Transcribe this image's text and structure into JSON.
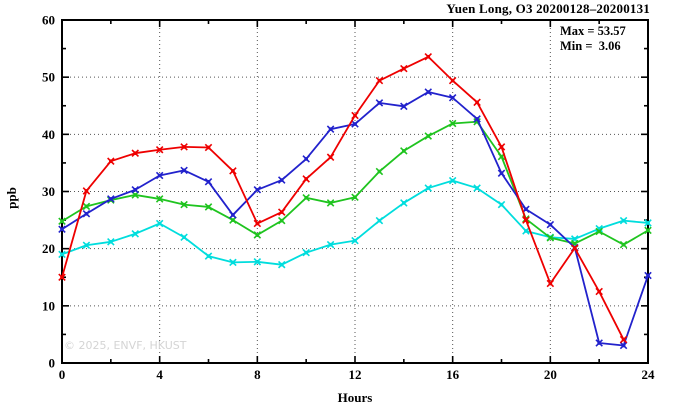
{
  "title": "Yuen Long, O3 20200128–20200131",
  "annotation": {
    "max_line": "Max = 53.57",
    "min_line": "Min =  3.06"
  },
  "watermark": "© 2025, ENVF, HKUST",
  "chart_data": {
    "type": "line",
    "title": "Yuen Long, O3 20200128–20200131",
    "xlabel": "Hours",
    "ylabel": "ppb",
    "xlim": [
      0,
      24
    ],
    "ylim": [
      0,
      60
    ],
    "x_major_ticks": [
      0,
      4,
      8,
      12,
      16,
      20,
      24
    ],
    "x_minor_ticks": [
      2,
      6,
      10,
      14,
      18,
      22
    ],
    "y_major_ticks": [
      0,
      10,
      20,
      30,
      40,
      50,
      60
    ],
    "y_minor_ticks": [
      5,
      15,
      25,
      35,
      45,
      55
    ],
    "grid_x": [
      4,
      8,
      12,
      16,
      20
    ],
    "grid_y": [
      10,
      20,
      30,
      40,
      50
    ],
    "grid_on": true,
    "legend_position": "none",
    "max_value": 53.57,
    "min_value": 3.06,
    "frame_color": "#000000",
    "series": [
      {
        "name": "day1-cyan",
        "color": "#00dddd",
        "hours": [
          0,
          1,
          2,
          3,
          4,
          5,
          6,
          7,
          8,
          9,
          10,
          11,
          12,
          13,
          14,
          15,
          16,
          17,
          18,
          19,
          20,
          21,
          22,
          23,
          24
        ],
        "values": [
          19.0,
          20.6,
          21.2,
          22.6,
          24.4,
          22.0,
          18.7,
          17.6,
          17.7,
          17.2,
          19.3,
          20.7,
          21.4,
          24.9,
          28.0,
          30.6,
          31.9,
          30.6,
          27.7,
          23.1,
          22.0,
          21.7,
          23.5,
          24.9,
          24.5
        ]
      },
      {
        "name": "day2-green",
        "color": "#1fc41f",
        "hours": [
          0,
          1,
          2,
          3,
          4,
          5,
          6,
          7,
          8,
          9,
          10,
          11,
          12,
          13,
          14,
          15,
          16,
          17,
          18,
          19,
          20,
          21,
          22,
          23,
          24
        ],
        "values": [
          24.8,
          27.4,
          28.5,
          29.4,
          28.7,
          27.7,
          27.3,
          25.0,
          22.4,
          24.9,
          28.9,
          28.0,
          29.0,
          33.5,
          37.1,
          39.7,
          41.9,
          42.2,
          36.1,
          25.2,
          21.9,
          20.9,
          23.0,
          20.7,
          23.2
        ]
      },
      {
        "name": "day3-blue",
        "color": "#2222cc",
        "hours": [
          0,
          1,
          2,
          3,
          4,
          5,
          6,
          7,
          8,
          9,
          10,
          11,
          12,
          13,
          14,
          15,
          16,
          17,
          18,
          19,
          20,
          21,
          22,
          23,
          24
        ],
        "values": [
          23.4,
          26.1,
          28.7,
          30.3,
          32.8,
          33.7,
          31.7,
          25.9,
          30.3,
          32.0,
          35.7,
          40.9,
          41.8,
          45.5,
          44.9,
          47.4,
          46.4,
          42.7,
          33.2,
          26.9,
          24.2,
          20.2,
          3.5,
          3.06,
          15.3
        ]
      },
      {
        "name": "day4-red",
        "color": "#ee0000",
        "hours": [
          0,
          1,
          2,
          3,
          4,
          5,
          6,
          7,
          8,
          9,
          10,
          11,
          12,
          13,
          14,
          15,
          16,
          17,
          18,
          19,
          20,
          21,
          22,
          23
        ],
        "values": [
          15.0,
          30.1,
          35.3,
          36.7,
          37.3,
          37.8,
          37.7,
          33.6,
          24.4,
          26.4,
          32.2,
          36.0,
          43.3,
          49.4,
          51.5,
          53.57,
          49.4,
          45.6,
          37.8,
          25.0,
          13.9,
          20.1,
          12.5,
          4.1
        ]
      }
    ]
  }
}
